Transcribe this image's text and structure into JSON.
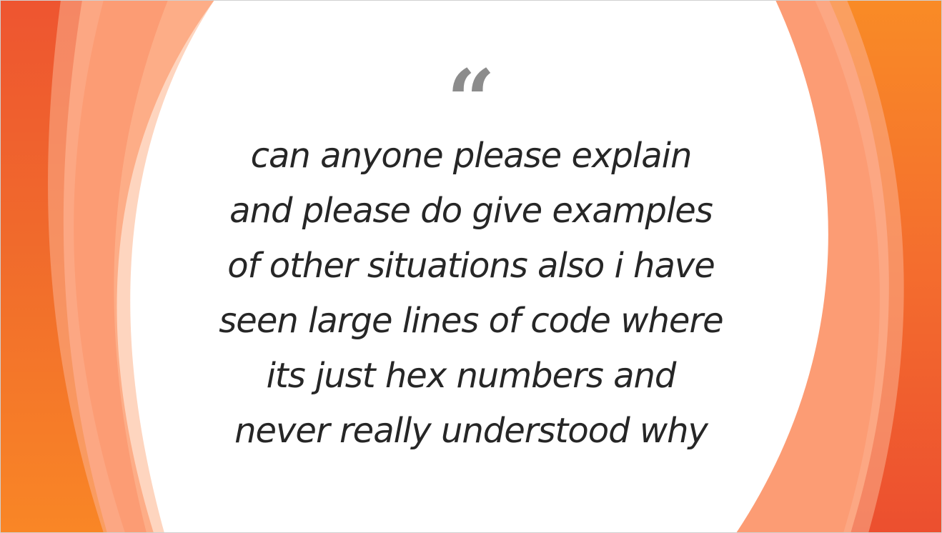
{
  "slide": {
    "quote_mark": "“",
    "quote_lines": [
      "can anyone please explain",
      "and please do give examples",
      "of other situations also i have",
      "seen large lines of code where",
      "its just hex numbers and",
      "never really understood why"
    ]
  },
  "theme": {
    "accent_dark": "#ef5530",
    "accent_orange": "#f7842a",
    "accent_light": "#fc9e77",
    "text_color": "#262626",
    "quote_mark_color": "#8c8c8c"
  }
}
